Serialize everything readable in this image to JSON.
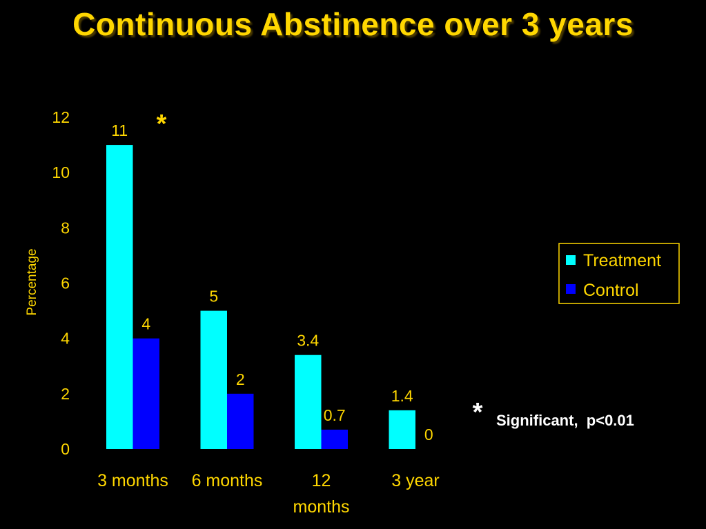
{
  "title": "Continuous Abstinence over 3 years",
  "colors": {
    "background": "#000000",
    "text": "#FFD700",
    "treatment": "#00FFFF",
    "control": "#0000FF",
    "note": "#FFFFFF"
  },
  "chart_data": {
    "type": "bar",
    "categories": [
      [
        "3 months"
      ],
      [
        "6 months"
      ],
      [
        "12",
        "months"
      ],
      [
        "3 year"
      ]
    ],
    "series": [
      {
        "name": "Treatment",
        "values": [
          11,
          5,
          3.4,
          1.4
        ],
        "labels": [
          "11",
          "5",
          "3.4",
          "1.4"
        ]
      },
      {
        "name": "Control",
        "values": [
          4,
          2,
          0.7,
          0
        ],
        "labels": [
          "4",
          "2",
          "0.7",
          "0"
        ]
      }
    ],
    "xlabel": "",
    "ylabel": "Percentage",
    "ylim": [
      0,
      12
    ],
    "yticks": [
      0,
      2,
      4,
      6,
      8,
      10,
      12
    ],
    "grid": false,
    "legend_position": "right",
    "significance_marker": "*",
    "significance_category": "3 months",
    "footnote": {
      "marker": "*",
      "text": "Significant,  p<0.01"
    }
  }
}
